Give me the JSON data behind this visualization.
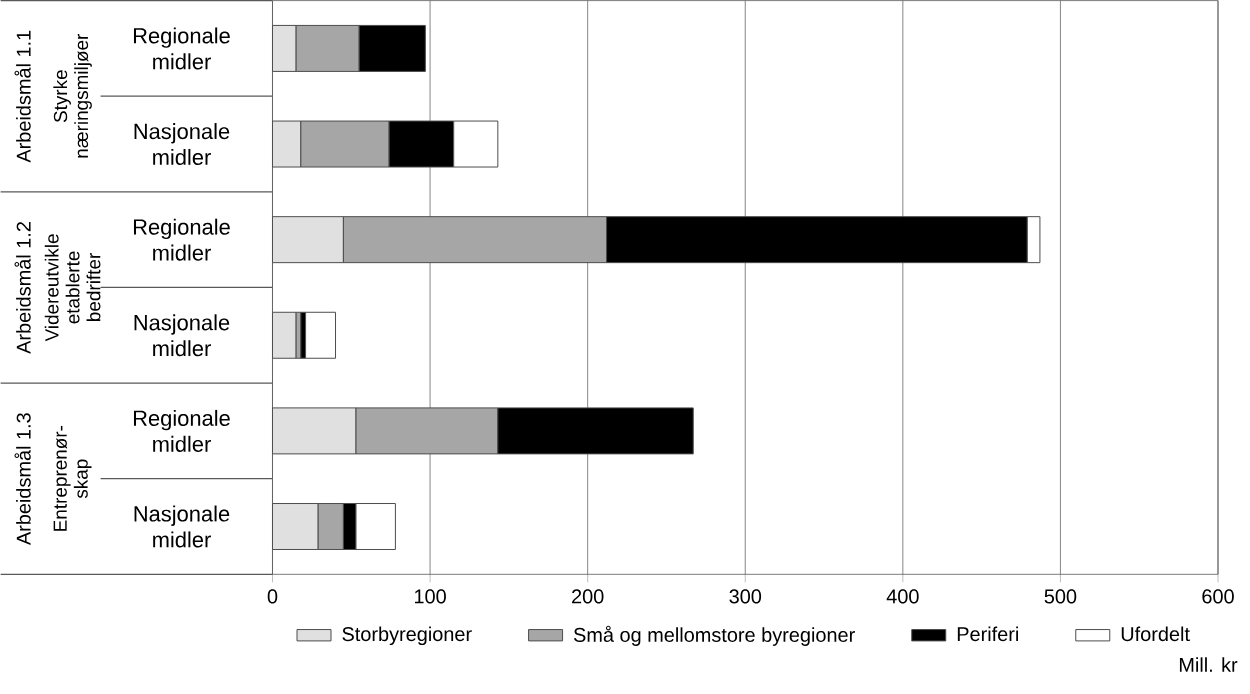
{
  "chart_data": {
    "type": "bar",
    "orientation": "horizontal",
    "stacked": true,
    "categories": [
      "Regionale midler",
      "Nasjonale midler",
      "Regionale midler",
      "Nasjonale midler",
      "Regionale midler",
      "Nasjonale midler"
    ],
    "series": [
      {
        "name": "Storbyregioner",
        "color": "#e0e0e0",
        "values": [
          15,
          18,
          45,
          15,
          53,
          29
        ]
      },
      {
        "name": "Små og mellomstore byregioner",
        "color": "#a6a6a6",
        "values": [
          40,
          56,
          167,
          3,
          90,
          16
        ]
      },
      {
        "name": "Periferi",
        "color": "#000000",
        "values": [
          42,
          41,
          267,
          3,
          124,
          8
        ]
      },
      {
        "name": "Ufordelt",
        "color": "#ffffff",
        "values": [
          null,
          28,
          8,
          19,
          null,
          25
        ]
      }
    ],
    "xlim": [
      0,
      600
    ],
    "xticks": [
      0,
      100,
      200,
      300,
      400,
      500,
      600
    ],
    "xlabel": "Mill. kr",
    "grid": "x",
    "legend": "bottom",
    "annotations": [
      "Arbeidsmål 1.1",
      "Styrke næringsmiljøer",
      "Arbeidsmål 1.2",
      "Videreutvikle etablerte bedrifter",
      "Arbeidsmål 1.3",
      "Entreprenør-skap"
    ]
  }
}
